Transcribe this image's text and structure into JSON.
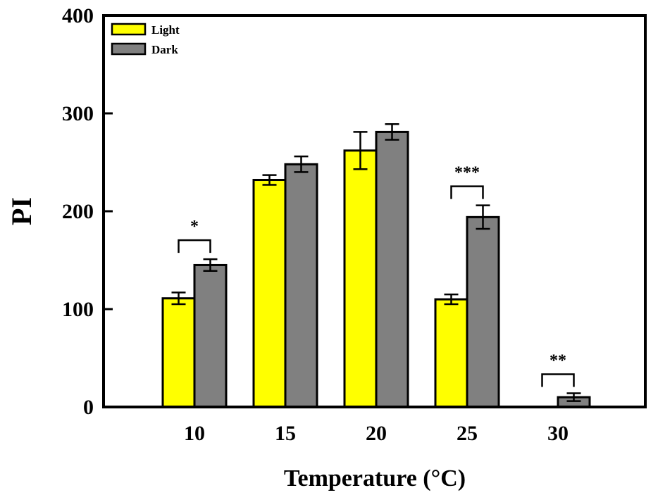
{
  "chart_data": {
    "type": "bar",
    "title": "",
    "xlabel": "Temperature (°C)",
    "ylabel": "PI",
    "ylim": [
      0,
      400
    ],
    "yticks": [
      0,
      100,
      200,
      300,
      400
    ],
    "categories": [
      "10",
      "15",
      "20",
      "25",
      "30"
    ],
    "series": [
      {
        "name": "Light",
        "color": "#ffff00",
        "values": [
          111,
          232,
          262,
          110,
          0
        ],
        "errors": [
          6,
          5,
          19,
          5,
          0
        ]
      },
      {
        "name": "Dark",
        "color": "#808080",
        "values": [
          145,
          248,
          281,
          194,
          10
        ],
        "errors": [
          6,
          8,
          8,
          12,
          4
        ]
      }
    ],
    "significance": [
      {
        "category": "30",
        "label": "**"
      },
      {
        "category": "10",
        "label": "*"
      },
      {
        "category": "25",
        "label": "***"
      }
    ],
    "legend_position": "top-left",
    "grid": false
  }
}
